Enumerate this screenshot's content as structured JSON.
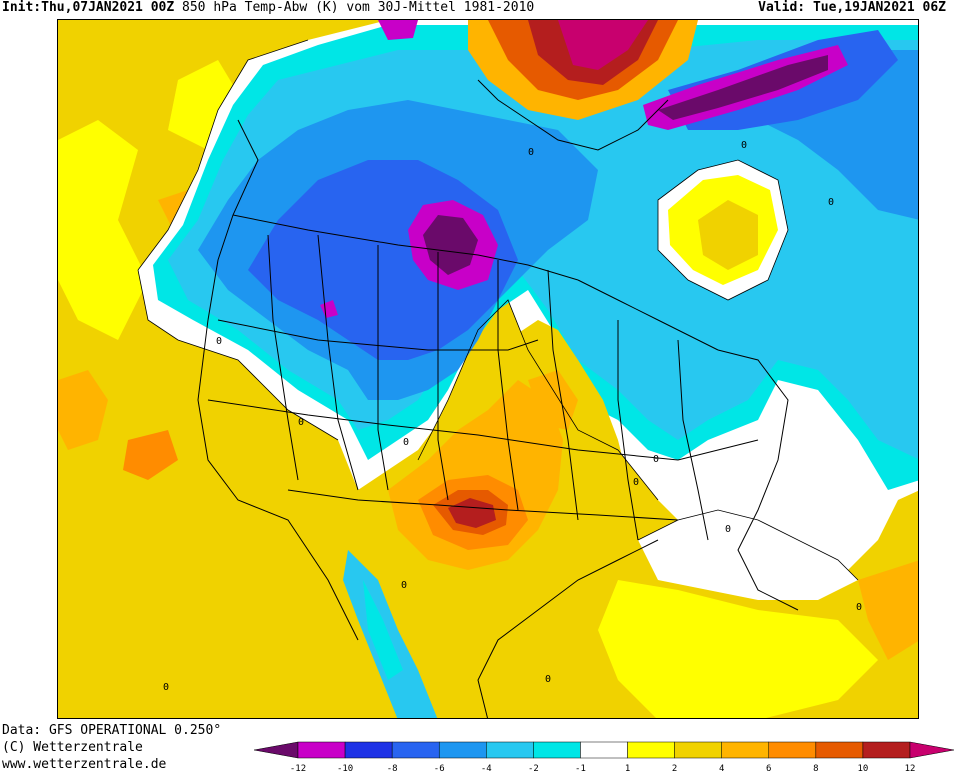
{
  "header": {
    "init_label": "Init:",
    "init_value": "Thu,07JAN2021 00Z",
    "product": "850 hPa Temp-Abw (K) vom 30J-Mittel 1981-2010",
    "valid_label": "Valid:",
    "valid_value": "Tue,19JAN2021 06Z"
  },
  "footer": {
    "line1": "Data: GFS OPERATIONAL 0.250°",
    "line2": "(C) Wetterzentrale",
    "line3": "www.wetterzentrale.de"
  },
  "legend": {
    "ticks": [
      "-12",
      "-10",
      "-8",
      "-6",
      "-4",
      "-2",
      "-1",
      "1",
      "2",
      "4",
      "6",
      "8",
      "10",
      "12"
    ],
    "colors": [
      "#6a0a6a",
      "#c800c8",
      "#1e32e6",
      "#2864f0",
      "#1e96f0",
      "#28c8f0",
      "#00e6e6",
      "#ffffff",
      "#ffff00",
      "#f0d200",
      "#ffb400",
      "#ff8c00",
      "#e65a00",
      "#b41e1e",
      "#c8006e"
    ]
  },
  "map": {
    "contour_labels": [
      "0",
      "0",
      "0",
      "0",
      "0",
      "0",
      "0",
      "0",
      "0",
      "0",
      "0",
      "0",
      "0"
    ],
    "palette": {
      "ocean_base": "#f0d200",
      "deep_purple": "#6a0a6a",
      "magenta": "#c800c8",
      "blue": "#2864f0",
      "mid_blue": "#1e96f0",
      "light_blue": "#28c8f0",
      "cyan": "#00e6e6",
      "white": "#ffffff",
      "yellow": "#ffff00",
      "gold": "#f0d200",
      "light_orange": "#ffb400",
      "orange": "#ff8c00",
      "dark_orange": "#e65a00",
      "red": "#b41e1e"
    }
  }
}
